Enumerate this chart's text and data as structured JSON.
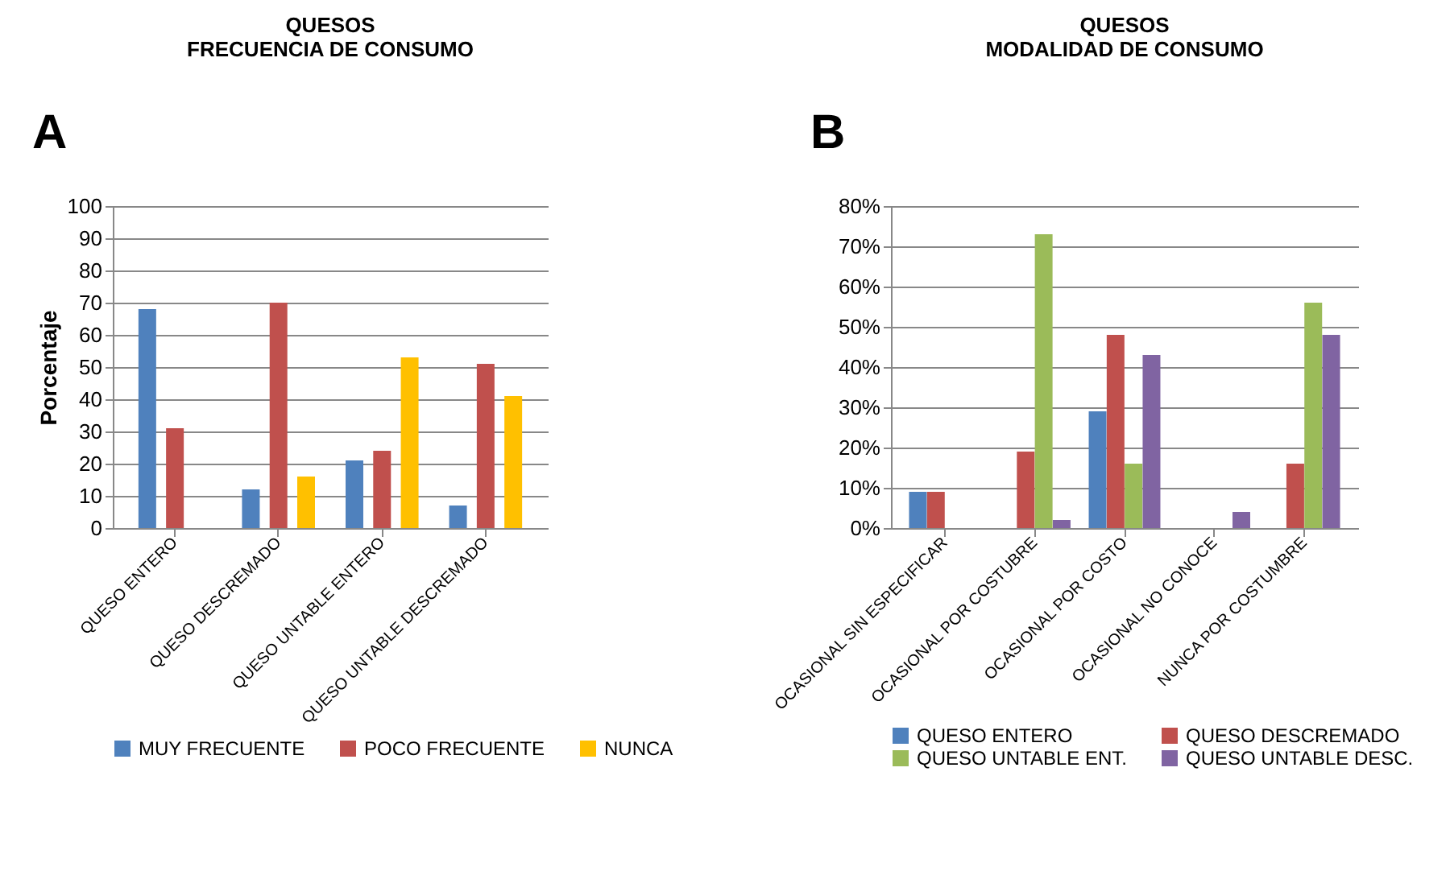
{
  "chart_data": [
    {
      "type": "bar",
      "title": "QUESOS\nFRECUENCIA DE CONSUMO",
      "ylabel": "Porcentaje",
      "annotations": [
        "A"
      ],
      "categories": [
        "QUESO ENTERO",
        "QUESO DESCREMADO",
        "QUESO UNTABLE ENTERO",
        "QUESO UNTABLE DESCREMADO"
      ],
      "series": [
        {
          "name": "MUY FRECUENTE",
          "color": "#4f81bd",
          "values": [
            68,
            12,
            21,
            7
          ]
        },
        {
          "name": "POCO FRECUENTE",
          "color": "#c0504d",
          "values": [
            31,
            70,
            24,
            51
          ]
        },
        {
          "name": "NUNCA",
          "color": "#ffc000",
          "values": [
            0,
            16,
            53,
            41
          ]
        }
      ],
      "ylim": [
        0,
        100
      ],
      "yticks": [
        0,
        10,
        20,
        30,
        40,
        50,
        60,
        70,
        80,
        90,
        100
      ],
      "grid": "y",
      "legend": "bottom"
    },
    {
      "type": "bar",
      "title": "QUESOS\nMODALIDAD DE CONSUMO",
      "annotations": [
        "B"
      ],
      "categories": [
        "OCASIONAL SIN ESPECIFICAR",
        "OCASIONAL POR COSTUBRE",
        "OCASIONAL POR COSTO",
        "OCASIONAL NO CONOCE",
        "NUNCA POR COSTUMBRE"
      ],
      "series": [
        {
          "name": "QUESO ENTERO",
          "color": "#4f81bd",
          "values": [
            9,
            0,
            29,
            0,
            0
          ]
        },
        {
          "name": "QUESO DESCREMADO",
          "color": "#c0504d",
          "values": [
            9,
            19,
            48,
            0,
            16
          ]
        },
        {
          "name": "QUESO UNTABLE ENT.",
          "color": "#9bbb59",
          "values": [
            0,
            73,
            16,
            0,
            56
          ]
        },
        {
          "name": "QUESO UNTABLE DESC.",
          "color": "#8064a2",
          "values": [
            0,
            2,
            43,
            4,
            48
          ]
        }
      ],
      "ylim": [
        0,
        80
      ],
      "yticks": [
        {
          "value": 0,
          "label": "0%"
        },
        {
          "value": 10,
          "label": "10%"
        },
        {
          "value": 20,
          "label": "20%"
        },
        {
          "value": 30,
          "label": "30%"
        },
        {
          "value": 40,
          "label": "40%"
        },
        {
          "value": 50,
          "label": "50%"
        },
        {
          "value": 60,
          "label": "60%"
        },
        {
          "value": 70,
          "label": "70%"
        },
        {
          "value": 80,
          "label": "80%"
        }
      ],
      "grid": "y",
      "legend": "bottom"
    }
  ]
}
